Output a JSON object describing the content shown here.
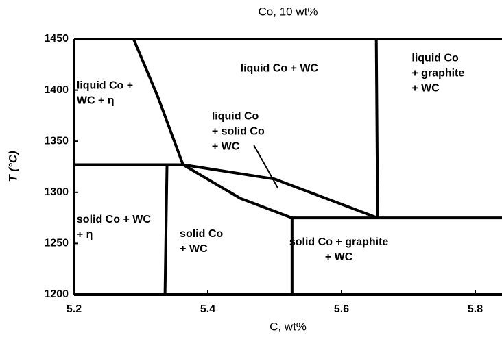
{
  "chart_data": {
    "type": "phase",
    "title": "Co, 10 wt%",
    "xlabel": "C, wt%",
    "ylabel": "T (°C)",
    "xlim": [
      5.2,
      5.84
    ],
    "ylim": [
      1200,
      1450
    ],
    "xticks": [
      5.2,
      5.4,
      5.6,
      5.8
    ],
    "yticks": [
      1200,
      1250,
      1300,
      1350,
      1400,
      1450
    ],
    "color": "#000000",
    "boundaries": [
      {
        "x": [
          5.2,
          5.363
        ],
        "y": [
          1327,
          1327
        ]
      },
      {
        "x": [
          5.289,
          5.325,
          5.363
        ],
        "y": [
          1450,
          1394,
          1327
        ]
      },
      {
        "x": [
          5.339,
          5.336
        ],
        "y": [
          1327,
          1200
        ]
      },
      {
        "x": [
          5.363,
          5.5,
          5.654
        ],
        "y": [
          1327,
          1313,
          1275
        ]
      },
      {
        "x": [
          5.363,
          5.449,
          5.526
        ],
        "y": [
          1327,
          1294,
          1275
        ]
      },
      {
        "x": [
          5.526,
          5.526
        ],
        "y": [
          1275,
          1200
        ]
      },
      {
        "x": [
          5.526,
          5.84
        ],
        "y": [
          1275,
          1275
        ]
      },
      {
        "x": [
          5.652,
          5.654
        ],
        "y": [
          1450,
          1275
        ]
      },
      {
        "x": [
          5.469,
          5.505
        ],
        "y": [
          1346,
          1304
        ]
      }
    ],
    "annotations": [
      {
        "lines": [
          "liquid Co +",
          "WC + η"
        ],
        "x": 5.204,
        "y": 1404,
        "align": "start"
      },
      {
        "lines": [
          "liquid Co + WC"
        ],
        "x": 5.507,
        "y": 1421,
        "align": "middle"
      },
      {
        "lines": [
          "liquid Co",
          "+ graphite",
          "+ WC"
        ],
        "x": 5.705,
        "y": 1431,
        "align": "start"
      },
      {
        "lines": [
          "liquid Co",
          "+ solid Co",
          "+ WC"
        ],
        "x": 5.406,
        "y": 1374,
        "align": "start"
      },
      {
        "lines": [
          "solid Co + WC",
          "+ η"
        ],
        "x": 5.204,
        "y": 1273,
        "align": "start"
      },
      {
        "lines": [
          "solid Co",
          "+ WC"
        ],
        "x": 5.358,
        "y": 1259,
        "align": "start"
      },
      {
        "lines": [
          "solid Co + graphite",
          "+  WC"
        ],
        "x": 5.596,
        "y": 1251,
        "align": "middle"
      }
    ]
  }
}
